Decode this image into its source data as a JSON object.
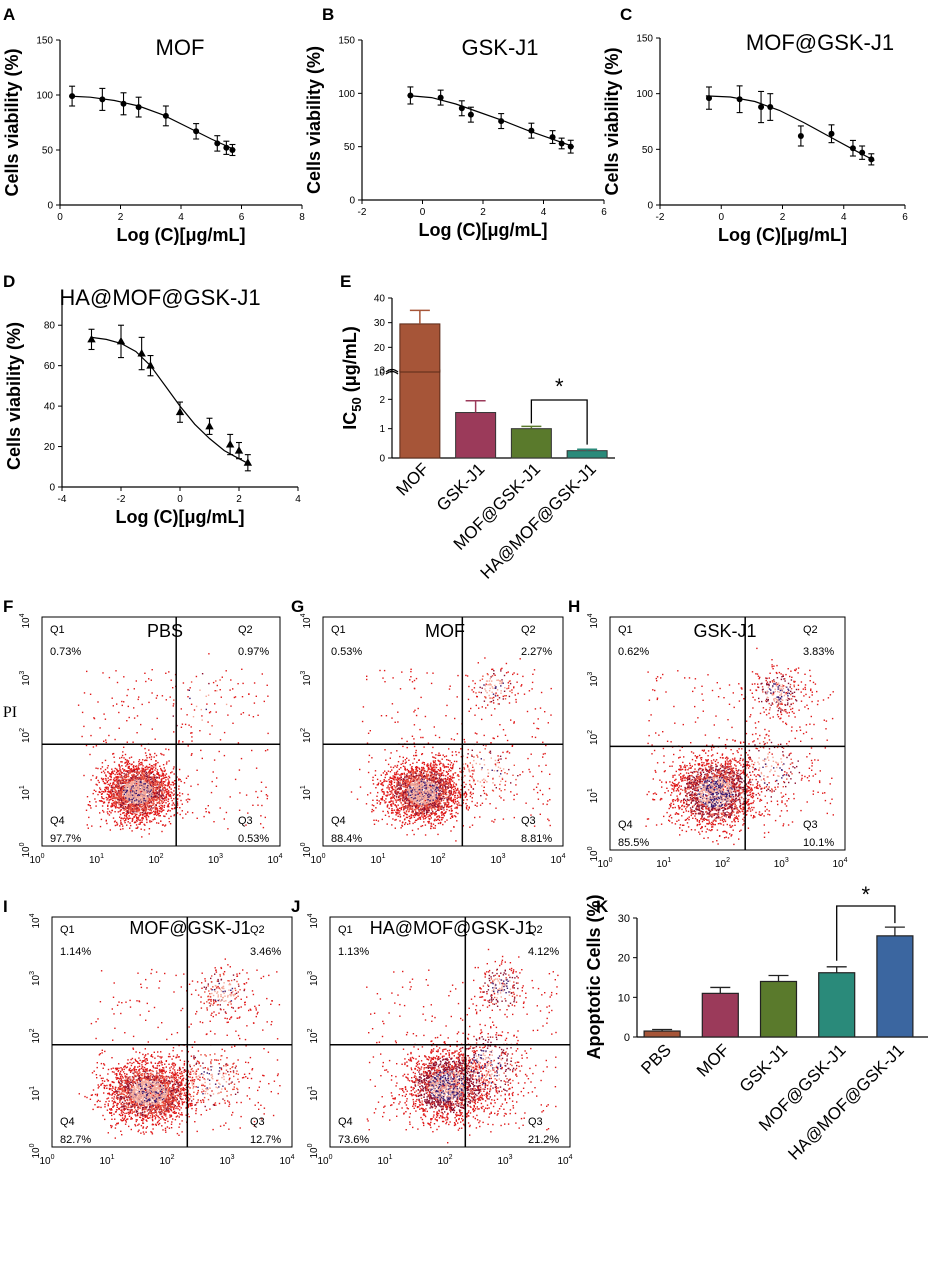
{
  "figure": {
    "panel_labels": [
      "A",
      "B",
      "C",
      "D",
      "E",
      "F",
      "G",
      "H",
      "I",
      "J",
      "K"
    ]
  },
  "chart_data": [
    {
      "id": "A",
      "type": "line",
      "title": "MOF",
      "xlabel": "Log (C)[μg/mL]",
      "ylabel": "Cells viability (%)",
      "xlim": [
        0,
        8
      ],
      "ylim": [
        0,
        150
      ],
      "xticks": [
        0,
        2,
        4,
        6,
        8
      ],
      "yticks": [
        0,
        50,
        100,
        150
      ],
      "x": [
        0.4,
        1.4,
        2.1,
        2.6,
        3.5,
        4.5,
        5.2,
        5.5,
        5.7
      ],
      "y": [
        99,
        96,
        92,
        89,
        81,
        67,
        56,
        52,
        50
      ],
      "err": [
        9,
        10,
        10,
        9,
        9,
        7,
        7,
        6,
        5
      ],
      "fit": [
        [
          0.3,
          99
        ],
        [
          1.0,
          98
        ],
        [
          1.8,
          95
        ],
        [
          2.6,
          90
        ],
        [
          3.4,
          82
        ],
        [
          4.2,
          71
        ],
        [
          5.0,
          60
        ],
        [
          5.8,
          50
        ]
      ],
      "marker": "circle"
    },
    {
      "id": "B",
      "type": "line",
      "title": "GSK-J1",
      "xlabel": "Log (C)[μg/mL]",
      "ylabel": "Cells viability (%)",
      "xlim": [
        -2,
        6
      ],
      "ylim": [
        0,
        150
      ],
      "xticks": [
        -2,
        0,
        2,
        4,
        6
      ],
      "yticks": [
        0,
        50,
        100,
        150
      ],
      "x": [
        -0.4,
        0.6,
        1.3,
        1.6,
        2.6,
        3.6,
        4.3,
        4.6,
        4.9
      ],
      "y": [
        98,
        96,
        86,
        80,
        74,
        65,
        59,
        53,
        50
      ],
      "err": [
        8,
        7,
        7,
        7,
        7,
        7,
        6,
        5,
        6
      ],
      "fit": [
        [
          -0.5,
          98
        ],
        [
          0.3,
          96
        ],
        [
          1.1,
          90
        ],
        [
          1.9,
          82
        ],
        [
          2.7,
          74
        ],
        [
          3.5,
          65
        ],
        [
          4.3,
          57
        ],
        [
          5.0,
          50
        ]
      ],
      "marker": "circle"
    },
    {
      "id": "C",
      "type": "line",
      "title": "MOF@GSK-J1",
      "xlabel": "Log (C)[μg/mL]",
      "ylabel": "Cells viability (%)",
      "xlim": [
        -2,
        6
      ],
      "ylim": [
        0,
        150
      ],
      "xticks": [
        -2,
        0,
        2,
        4,
        6
      ],
      "yticks": [
        0,
        50,
        100,
        150
      ],
      "x": [
        -0.4,
        0.6,
        1.3,
        1.6,
        2.6,
        3.6,
        4.3,
        4.6,
        4.9
      ],
      "y": [
        96,
        95,
        88,
        88,
        62,
        64,
        51,
        47,
        41
      ],
      "err": [
        10,
        12,
        14,
        12,
        9,
        8,
        7,
        6,
        5
      ],
      "fit": [
        [
          -0.5,
          98
        ],
        [
          0.3,
          97
        ],
        [
          1.1,
          93
        ],
        [
          1.9,
          85
        ],
        [
          2.7,
          74
        ],
        [
          3.5,
          62
        ],
        [
          4.3,
          50
        ],
        [
          5.0,
          40
        ]
      ],
      "marker": "circle"
    },
    {
      "id": "D",
      "type": "line",
      "title": "HA@MOF@GSK-J1",
      "xlabel": "Log (C)[μg/mL]",
      "ylabel": "Cells viability (%)",
      "xlim": [
        -4,
        4
      ],
      "ylim": [
        0,
        90
      ],
      "xticks": [
        -4,
        -2,
        0,
        2,
        4
      ],
      "yticks": [
        0,
        20,
        40,
        60,
        80
      ],
      "x": [
        -3.0,
        -2.0,
        -1.3,
        -1.0,
        0.0,
        1.0,
        1.7,
        2.0,
        2.3
      ],
      "y": [
        73,
        72,
        66,
        60,
        37,
        30,
        21,
        18,
        12
      ],
      "err": [
        5,
        8,
        8,
        5,
        5,
        4,
        5,
        4,
        4
      ],
      "fit": [
        [
          -3.0,
          74
        ],
        [
          -2.5,
          73
        ],
        [
          -2.0,
          71
        ],
        [
          -1.5,
          67
        ],
        [
          -1.0,
          60
        ],
        [
          -0.5,
          50
        ],
        [
          0.0,
          40
        ],
        [
          0.5,
          31
        ],
        [
          1.0,
          24
        ],
        [
          1.5,
          18
        ],
        [
          2.0,
          14
        ],
        [
          2.4,
          11
        ]
      ],
      "marker": "triangle"
    },
    {
      "id": "E",
      "type": "bar",
      "ylabel": "IC50 (μg/mL)",
      "ylabel_main": "IC",
      "ylabel_sub": "50",
      "ylabel_unit": " (μg/mL)",
      "categories": [
        "MOF",
        "GSK-J1",
        "MOF@GSK-J1",
        "HA@MOF@GSK-J1"
      ],
      "values": [
        29.5,
        1.55,
        1.0,
        0.25
      ],
      "err": [
        5.5,
        0.4,
        0.08,
        0.05
      ],
      "colors": [
        "#a65538",
        "#9b3a5a",
        "#5a7a2c",
        "#2a8a7a"
      ],
      "broken_axis": {
        "lower": [
          0,
          3
        ],
        "upper": [
          10,
          40
        ]
      },
      "yticks_lower": [
        0,
        1,
        2,
        3
      ],
      "yticks_upper": [
        10,
        20,
        30,
        40
      ],
      "significance": {
        "between": [
          2,
          3
        ],
        "label": "*"
      }
    },
    {
      "id": "K",
      "type": "bar",
      "ylabel": "Apoptotic Cells (%)",
      "categories": [
        "PBS",
        "MOF",
        "GSK-J1",
        "MOF@GSK-J1",
        "HA@MOF@GSK-J1"
      ],
      "values": [
        1.5,
        11.0,
        14.0,
        16.2,
        25.5
      ],
      "err": [
        0.4,
        1.5,
        1.5,
        1.5,
        2.2
      ],
      "colors": [
        "#a65538",
        "#9b3a5a",
        "#5a7a2c",
        "#2a8a7a",
        "#3b66a0"
      ],
      "ylim": [
        0,
        30
      ],
      "yticks": [
        0,
        10,
        20,
        30
      ],
      "significance": {
        "between": [
          3,
          4
        ],
        "label": "*"
      }
    },
    {
      "id": "F",
      "type": "scatter",
      "title": "PBS",
      "ylabel": "PI",
      "show_ylabel": true,
      "quadrants": {
        "Q1": "0.73%",
        "Q2": "0.97%",
        "Q3": "0.53%",
        "Q4": "97.7%"
      },
      "gate": [
        180,
        60
      ],
      "density": 0.3,
      "clusters": [
        {
          "cx": 40,
          "cy": 9,
          "sx": 0.28,
          "sy": 0.24,
          "n": 2400
        },
        {
          "cx": 500,
          "cy": 300,
          "sx": 0.45,
          "sy": 0.35,
          "n": 30
        }
      ],
      "seed": 11
    },
    {
      "id": "G",
      "type": "scatter",
      "title": "MOF",
      "quadrants": {
        "Q1": "0.53%",
        "Q2": "2.27%",
        "Q3": "8.81%",
        "Q4": "88.4%"
      },
      "gate": [
        210,
        60
      ],
      "density": 0.35,
      "clusters": [
        {
          "cx": 45,
          "cy": 9,
          "sx": 0.3,
          "sy": 0.25,
          "n": 2300
        },
        {
          "cx": 700,
          "cy": 600,
          "sx": 0.2,
          "sy": 0.2,
          "n": 120
        },
        {
          "cx": 500,
          "cy": 20,
          "sx": 0.35,
          "sy": 0.3,
          "n": 150
        }
      ],
      "seed": 23
    },
    {
      "id": "H",
      "type": "scatter",
      "title": "GSK-J1",
      "quadrants": {
        "Q1": "0.62%",
        "Q2": "3.83%",
        "Q3": "10.1%",
        "Q4": "85.5%"
      },
      "gate": [
        200,
        60
      ],
      "density": 0.55,
      "clusters": [
        {
          "cx": 60,
          "cy": 10,
          "sx": 0.35,
          "sy": 0.3,
          "n": 2000
        },
        {
          "cx": 700,
          "cy": 500,
          "sx": 0.22,
          "sy": 0.2,
          "n": 250
        },
        {
          "cx": 500,
          "cy": 25,
          "sx": 0.35,
          "sy": 0.3,
          "n": 200
        }
      ],
      "seed": 37
    },
    {
      "id": "I",
      "type": "scatter",
      "title": "MOF@GSK-J1",
      "quadrants": {
        "Q1": "1.14%",
        "Q2": "3.46%",
        "Q3": "12.7%",
        "Q4": "82.7%"
      },
      "gate": [
        180,
        60
      ],
      "density": 0.35,
      "clusters": [
        {
          "cx": 40,
          "cy": 9,
          "sx": 0.35,
          "sy": 0.25,
          "n": 2300
        },
        {
          "cx": 700,
          "cy": 500,
          "sx": 0.22,
          "sy": 0.22,
          "n": 180
        },
        {
          "cx": 400,
          "cy": 15,
          "sx": 0.35,
          "sy": 0.3,
          "n": 250
        }
      ],
      "seed": 47
    },
    {
      "id": "J",
      "type": "scatter",
      "title": "HA@MOF@GSK-J1",
      "quadrants": {
        "Q1": "1.13%",
        "Q2": "4.12%",
        "Q3": "21.2%",
        "Q4": "73.6%"
      },
      "gate": [
        180,
        60
      ],
      "density": 0.65,
      "clusters": [
        {
          "cx": 90,
          "cy": 12,
          "sx": 0.35,
          "sy": 0.3,
          "n": 1900
        },
        {
          "cx": 700,
          "cy": 600,
          "sx": 0.2,
          "sy": 0.22,
          "n": 200
        },
        {
          "cx": 400,
          "cy": 25,
          "sx": 0.32,
          "sy": 0.35,
          "n": 400
        }
      ],
      "seed": 59
    }
  ]
}
